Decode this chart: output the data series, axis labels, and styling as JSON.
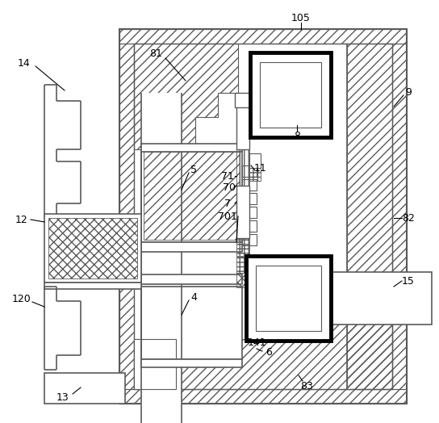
{
  "bg_color": "#ffffff",
  "line_color": "#5a5a5a",
  "figsize": [
    5.44,
    5.24
  ],
  "dpi": 100
}
